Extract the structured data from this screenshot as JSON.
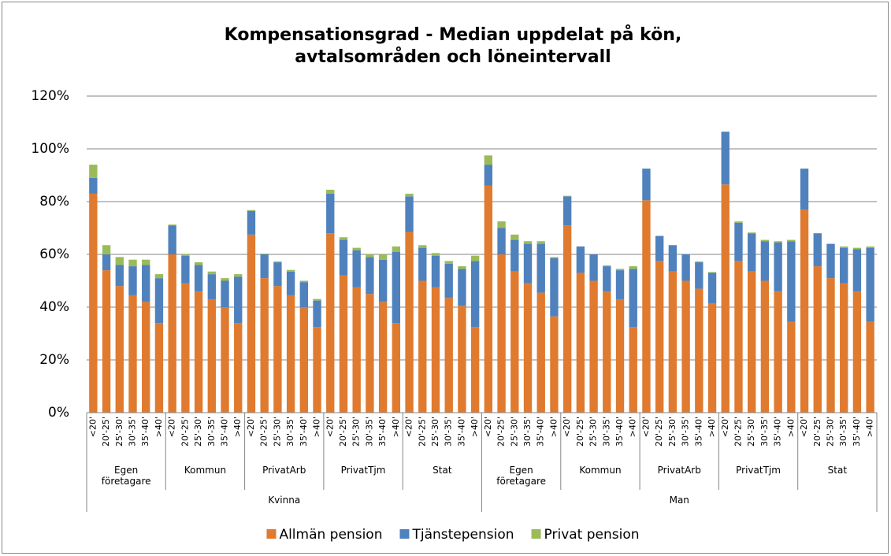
{
  "chart_data": {
    "type": "stacked_bar",
    "title": "Kompensationsgrad - Median uppdelat på kön,\navtalsområden och löneintervall",
    "categories": [
      "<20'",
      "20'-25'",
      "25'-30'",
      "30'-35'",
      "35'-40'",
      ">40'",
      "<20'",
      "20'-25'",
      "25'-30'",
      "30'-35'",
      "35'-40'",
      ">40'",
      "<20'",
      "20'-25'",
      "25'-30'",
      "30'-35'",
      "35'-40'",
      ">40'",
      "<20'",
      "20'-25'",
      "25'-30'",
      "30'-35'",
      "35'-40'",
      ">40'",
      "<20'",
      "20'-25'",
      "25'-30'",
      "30'-35'",
      "35'-40'",
      ">40'",
      "<20'",
      "20'-25'",
      "25'-30'",
      "30'-35'",
      "35'-40'",
      ">40'",
      "<20'",
      "20'-25'",
      "25'-30'",
      "30'-35'",
      "35'-40'",
      ">40'",
      "<20'",
      "20'-25'",
      "25'-30'",
      "30'-35'",
      "35'-40'",
      ">40'",
      "<20'",
      "20'-25'",
      "25'-30'",
      "30'-35'",
      "35'-40'",
      ">40'",
      "<20'",
      "20'-25'",
      "25'-30'",
      "30'-35'",
      "35'-40'",
      ">40'"
    ],
    "category_levels": [
      {
        "labels": [
          "Egen företagare",
          "Kommun",
          "PrivatArb",
          "PrivatTjm",
          "Stat",
          "Egen företagare",
          "Kommun",
          "PrivatArb",
          "PrivatTjm",
          "Stat"
        ]
      },
      {
        "labels": [
          "Kvinna",
          "Man"
        ]
      }
    ],
    "series": [
      {
        "name": "Allmän pension",
        "color": "#e07a2f",
        "values": [
          83,
          54,
          48,
          44.5,
          42,
          34,
          60,
          49,
          46,
          43,
          40,
          34,
          67.5,
          51,
          48,
          44.5,
          40,
          32.5,
          68,
          52,
          47.5,
          45,
          42,
          34,
          68.5,
          50,
          47.5,
          43.5,
          40.5,
          32.5,
          86,
          60,
          53.5,
          49,
          45.5,
          36.5,
          71,
          53,
          50,
          46,
          43,
          32.5,
          80.5,
          57.5,
          53.5,
          50,
          47,
          41.5,
          86.5,
          57.5,
          53.5,
          50,
          46,
          34.5,
          77,
          55.5,
          51,
          49,
          46,
          34.5
        ]
      },
      {
        "name": "Tjänstepension",
        "color": "#4f81bd",
        "values": [
          6,
          6,
          8,
          11,
          14,
          17,
          11,
          10.5,
          10,
          9.5,
          10,
          17.5,
          9,
          9,
          9,
          9,
          9.5,
          10,
          15,
          13.5,
          14,
          14,
          16,
          27,
          13.5,
          12.5,
          12,
          13,
          14,
          25,
          8,
          10,
          12,
          15,
          18.5,
          22,
          11,
          10,
          10,
          9.5,
          11,
          22,
          12,
          9.5,
          10,
          10,
          10,
          11.5,
          20,
          14.5,
          14.5,
          15,
          18.5,
          30.5,
          15.5,
          12.5,
          13,
          13.5,
          16,
          28
        ]
      },
      {
        "name": "Privat pension",
        "color": "#9bbb59",
        "values": [
          5,
          3.5,
          3,
          2.5,
          2,
          1.5,
          0.3,
          0.5,
          1,
          1,
          1,
          1,
          0.3,
          0.3,
          0.3,
          0.6,
          0.5,
          0.6,
          1.5,
          1,
          1,
          1,
          2,
          2,
          1,
          1,
          1,
          1,
          1,
          2,
          3.5,
          2.5,
          2,
          1,
          1,
          0.5,
          0.2,
          0,
          0,
          0.3,
          0.5,
          1,
          0,
          0,
          0,
          0,
          0.3,
          0.3,
          0,
          0.5,
          0.3,
          0.5,
          0.5,
          0.5,
          0,
          0,
          0,
          0.5,
          0.5,
          0.5
        ]
      }
    ],
    "ylim": [
      0,
      120
    ],
    "yticks": [
      {
        "value": 0,
        "label": "0%"
      },
      {
        "value": 20,
        "label": "20%"
      },
      {
        "value": 40,
        "label": "40%"
      },
      {
        "value": 60,
        "label": "60%"
      },
      {
        "value": 80,
        "label": "80%"
      },
      {
        "value": 100,
        "label": "100%"
      },
      {
        "value": 120,
        "label": "120%"
      }
    ],
    "grid": true,
    "legend": "bottom"
  }
}
